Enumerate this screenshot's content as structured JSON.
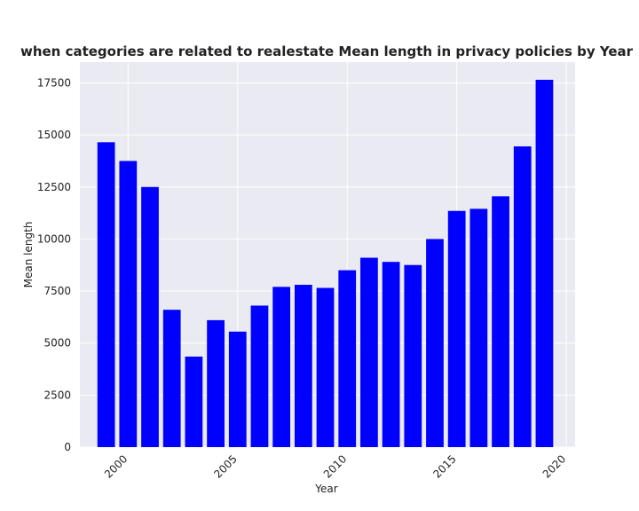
{
  "chart_data": {
    "type": "bar",
    "title": "when categories are related to realestate Mean length in privacy policies by Year",
    "xlabel": "Year",
    "ylabel": "Mean length",
    "x": [
      1999,
      2000,
      2001,
      2002,
      2003,
      2004,
      2005,
      2006,
      2007,
      2008,
      2009,
      2010,
      2011,
      2012,
      2013,
      2014,
      2015,
      2016,
      2017,
      2018,
      2019
    ],
    "values": [
      14650,
      13750,
      12500,
      6600,
      4350,
      6100,
      5550,
      6800,
      7700,
      7800,
      7650,
      8500,
      9100,
      8900,
      8750,
      10000,
      11350,
      11450,
      12050,
      14450,
      17650
    ],
    "xlim": [
      1997.8,
      2020.4
    ],
    "ylim": [
      0,
      18500
    ],
    "xticks": [
      2000,
      2005,
      2010,
      2015,
      2020
    ],
    "yticks": [
      0,
      2500,
      5000,
      7500,
      10000,
      12500,
      15000,
      17500
    ],
    "grid": true,
    "bar_color": "#0000ff",
    "background_color": "#eaeaf2"
  }
}
